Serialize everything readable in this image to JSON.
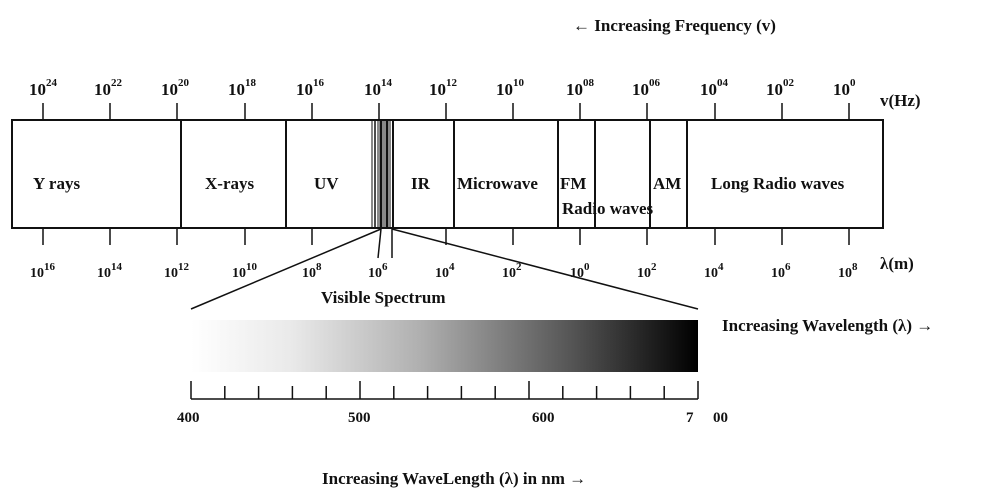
{
  "header": {
    "frequency_direction": "← Increasing Frequency (v)"
  },
  "frequency_axis": {
    "unit_label": "v(Hz)",
    "ticks": [
      {
        "base": "10",
        "exp": "24"
      },
      {
        "base": "10",
        "exp": "22"
      },
      {
        "base": "10",
        "exp": "20"
      },
      {
        "base": "10",
        "exp": "18"
      },
      {
        "base": "10",
        "exp": "16"
      },
      {
        "base": "10",
        "exp": "14"
      },
      {
        "base": "10",
        "exp": "12"
      },
      {
        "base": "10",
        "exp": "10"
      },
      {
        "base": "10",
        "exp": "08"
      },
      {
        "base": "10",
        "exp": "06"
      },
      {
        "base": "10",
        "exp": "04"
      },
      {
        "base": "10",
        "exp": "02"
      },
      {
        "base": "10",
        "exp": "0"
      }
    ]
  },
  "bands": [
    {
      "label": "Y rays"
    },
    {
      "label": "X-rays"
    },
    {
      "label": "UV"
    },
    {
      "label": "IR"
    },
    {
      "label": "Microwave"
    },
    {
      "label": "FM"
    },
    {
      "label": "Radio waves"
    },
    {
      "label": "AM"
    },
    {
      "label": "Long Radio waves"
    }
  ],
  "wavelength_axis": {
    "unit_label": "λ(m)",
    "ticks": [
      {
        "base": "10",
        "exp": "16"
      },
      {
        "base": "10",
        "exp": "14"
      },
      {
        "base": "10",
        "exp": "12"
      },
      {
        "base": "10",
        "exp": "10"
      },
      {
        "base": "10",
        "exp": "8"
      },
      {
        "base": "10",
        "exp": "6"
      },
      {
        "base": "10",
        "exp": "4"
      },
      {
        "base": "10",
        "exp": "2"
      },
      {
        "base": "10",
        "exp": "0"
      },
      {
        "base": "10",
        "exp": "2"
      },
      {
        "base": "10",
        "exp": "4"
      },
      {
        "base": "10",
        "exp": "6"
      },
      {
        "base": "10",
        "exp": "8"
      }
    ]
  },
  "visible_spectrum": {
    "title": "Visible Spectrum",
    "wavelength_direction": "Increasing Wavelength (λ) →",
    "gradient_start_color": "#ffffff",
    "gradient_end_color": "#000000",
    "scale_labels": [
      "400",
      "500",
      "600",
      "7",
      "00"
    ],
    "scale_range_nm": [
      400,
      700
    ],
    "minor_tick_step_nm": 20,
    "footer": "Increasing WaveLength (λ) in nm →"
  }
}
